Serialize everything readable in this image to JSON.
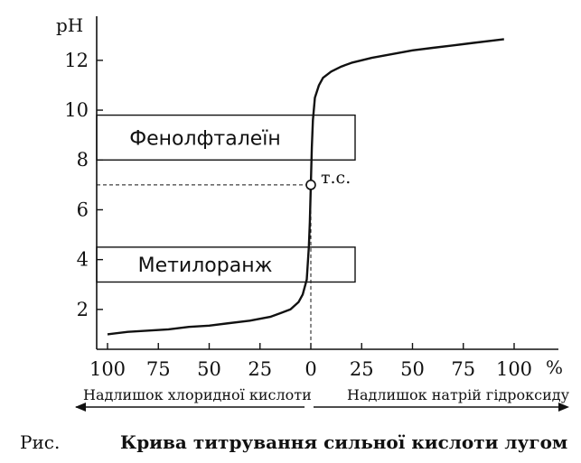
{
  "chart_data": {
    "type": "line",
    "title": "",
    "ylabel": "pH",
    "xlabel_unit": "%",
    "ylim": [
      0.4,
      13.8
    ],
    "y_ticks": [
      2,
      4,
      6,
      8,
      10,
      12
    ],
    "x_tick_labels": [
      "100",
      "75",
      "50",
      "25",
      "0",
      "25",
      "50",
      "75",
      "100"
    ],
    "x_tick_values": [
      -100,
      -75,
      -50,
      -25,
      0,
      25,
      50,
      75,
      100
    ],
    "xlim": [
      -105,
      105
    ],
    "series": [
      {
        "x": [
          -100,
          -90,
          -80,
          -70,
          -60,
          -50,
          -40,
          -30,
          -20,
          -15,
          -10,
          -6,
          -4,
          -2,
          -1,
          -0.5,
          0,
          0.5,
          1,
          2,
          4,
          6,
          10,
          15,
          20,
          30,
          40,
          50,
          60,
          70,
          80,
          90,
          95
        ],
        "y": [
          1.0,
          1.1,
          1.15,
          1.2,
          1.3,
          1.35,
          1.45,
          1.55,
          1.7,
          1.85,
          2.0,
          2.3,
          2.6,
          3.2,
          4.5,
          5.5,
          7.0,
          8.5,
          9.6,
          10.5,
          11.0,
          11.3,
          11.55,
          11.75,
          11.9,
          12.1,
          12.25,
          12.4,
          12.5,
          12.6,
          12.7,
          12.8,
          12.85
        ]
      }
    ],
    "equivalence_point": {
      "x": 0,
      "y": 7.0,
      "label": "т.с."
    },
    "indicator_zones": [
      {
        "name": "Фенолфталеїн",
        "y_from": 8.0,
        "y_to": 9.8
      },
      {
        "name": "Метилоранж",
        "y_from": 3.1,
        "y_to": 4.5
      }
    ],
    "excess_labels": {
      "left": "Надлишок хлоридної кислоти",
      "right": "Надлишок натрій гідроксиду"
    }
  },
  "caption": {
    "prefix": "Рис.",
    "title": "Крива титрування сильної кислоти лугом"
  }
}
